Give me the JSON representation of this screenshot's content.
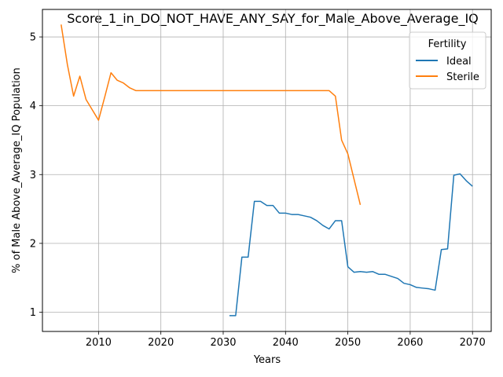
{
  "chart_data": {
    "type": "line",
    "title": "Score_1_in_DO_NOT_HAVE_ANY_SAY_for_Male_Above_Average_IQ",
    "xlabel": "Years",
    "ylabel": "% of Male Above_Average_IQ Population",
    "xlim": [
      2001,
      2073
    ],
    "ylim": [
      0.72,
      5.4
    ],
    "xticks": [
      2010,
      2020,
      2030,
      2040,
      2050,
      2060,
      2070
    ],
    "yticks": [
      1,
      2,
      3,
      4,
      5
    ],
    "grid": true,
    "legend": {
      "title": "Fertility",
      "position": "top-right"
    },
    "series": [
      {
        "name": "Ideal",
        "color": "#1f77b4",
        "x": [
          2031,
          2032,
          2033,
          2034,
          2035,
          2036,
          2037,
          2038,
          2039,
          2040,
          2041,
          2042,
          2043,
          2044,
          2045,
          2046,
          2047,
          2048,
          2049,
          2050,
          2051,
          2052,
          2053,
          2054,
          2055,
          2056,
          2057,
          2058,
          2059,
          2060,
          2061,
          2062,
          2063,
          2064,
          2065,
          2066,
          2067,
          2068,
          2069,
          2070
        ],
        "y": [
          0.95,
          0.95,
          1.8,
          1.8,
          2.61,
          2.61,
          2.55,
          2.55,
          2.44,
          2.44,
          2.42,
          2.42,
          2.4,
          2.38,
          2.33,
          2.26,
          2.21,
          2.33,
          2.33,
          1.66,
          1.58,
          1.59,
          1.58,
          1.59,
          1.55,
          1.55,
          1.52,
          1.49,
          1.42,
          1.4,
          1.36,
          1.35,
          1.34,
          1.32,
          1.91,
          1.92,
          2.99,
          3.01,
          2.91,
          2.83
        ]
      },
      {
        "name": "Sterile",
        "color": "#ff7f0e",
        "x": [
          2004,
          2005,
          2006,
          2007,
          2008,
          2009,
          2010,
          2011,
          2012,
          2013,
          2014,
          2015,
          2016,
          2017,
          2018,
          2019,
          2020,
          2021,
          2022,
          2023,
          2024,
          2025,
          2026,
          2027,
          2028,
          2029,
          2030,
          2031,
          2032,
          2033,
          2034,
          2035,
          2036,
          2037,
          2038,
          2039,
          2040,
          2041,
          2042,
          2043,
          2044,
          2045,
          2046,
          2047,
          2048,
          2049,
          2050,
          2051,
          2052
        ],
        "y": [
          5.18,
          4.6,
          4.14,
          4.43,
          4.09,
          3.94,
          3.79,
          4.13,
          4.48,
          4.37,
          4.33,
          4.26,
          4.22,
          4.22,
          4.22,
          4.22,
          4.22,
          4.22,
          4.22,
          4.22,
          4.22,
          4.22,
          4.22,
          4.22,
          4.22,
          4.22,
          4.22,
          4.22,
          4.22,
          4.22,
          4.22,
          4.22,
          4.22,
          4.22,
          4.22,
          4.22,
          4.22,
          4.22,
          4.22,
          4.22,
          4.22,
          4.22,
          4.22,
          4.22,
          4.14,
          3.5,
          3.3,
          2.93,
          2.56
        ]
      }
    ]
  }
}
